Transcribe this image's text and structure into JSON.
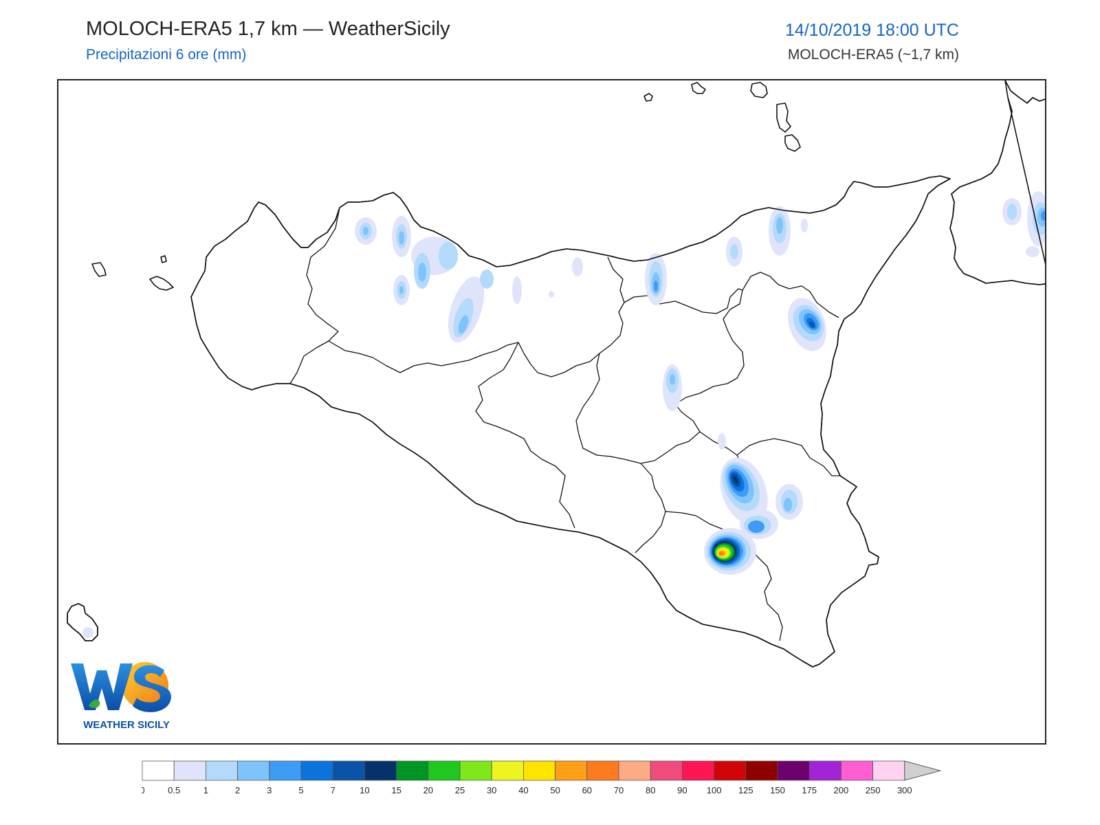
{
  "header": {
    "title": "MOLOCH-ERA5 1,7 km — WeatherSicily",
    "subtitle": "Precipitazioni 6 ore (mm)",
    "datetime": "14/10/2019 18:00 UTC",
    "model": "MOLOCH-ERA5 (~1,7 km)"
  },
  "logo": {
    "letters": "WS",
    "name": "WEATHER SICILY"
  },
  "colorbar": {
    "ticks": [
      "0",
      "0.5",
      "1",
      "2",
      "3",
      "5",
      "7",
      "10",
      "15",
      "20",
      "25",
      "30",
      "40",
      "50",
      "60",
      "70",
      "80",
      "90",
      "100",
      "125",
      "150",
      "175",
      "200",
      "250",
      "300"
    ],
    "colors": [
      "#ffffff",
      "#e0e4fb",
      "#b3dafa",
      "#7fc3fb",
      "#3e9bf6",
      "#0c72dc",
      "#0a53a8",
      "#06326b",
      "#009623",
      "#1ec81e",
      "#7fe81a",
      "#eef51c",
      "#ffe400",
      "#ff9f16",
      "#ff7a1f",
      "#fcab84",
      "#ef4c7d",
      "#ff1553",
      "#d10508",
      "#900000",
      "#6c006c",
      "#a224d6",
      "#ff5ed2",
      "#ffd3f0"
    ],
    "extend_color": "#d0d0d0"
  },
  "precip_colors": {
    "c05": "#e0e4fb",
    "c1": "#b3dafa",
    "c2": "#7fc3fb",
    "c3": "#3e9bf6",
    "c5": "#0c72dc",
    "c7": "#0a53a8",
    "c10": "#06326b",
    "c15": "#009623",
    "c20": "#1ec81e",
    "c25": "#7fe81a",
    "c30": "#eef51c",
    "c40": "#ffe400",
    "c50": "#ff9f16",
    "c60": "#ff7a1f"
  },
  "map": {
    "region": "Sicily",
    "max_precip_mm_class": "60-70"
  }
}
